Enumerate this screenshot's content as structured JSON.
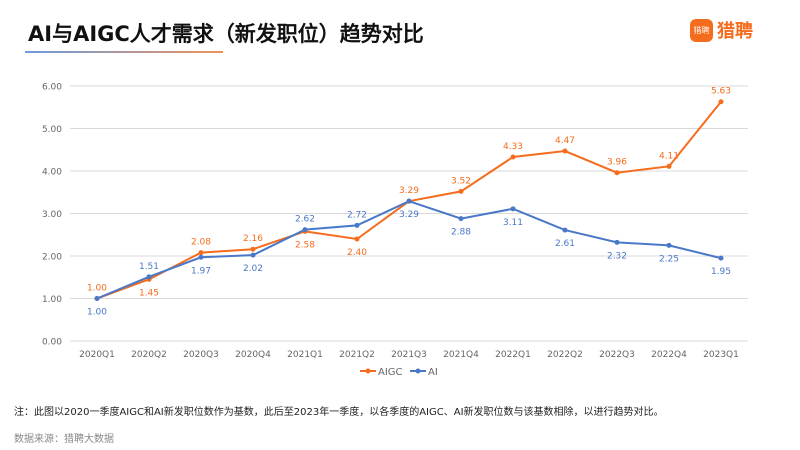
{
  "header": {
    "title": "AI与AIGC人才需求（新发职位）趋势对比",
    "logo_text": "猎聘",
    "logo_icon_text": "猎聘"
  },
  "chart_data": {
    "type": "line",
    "categories": [
      "2020Q1",
      "2020Q2",
      "2020Q3",
      "2020Q4",
      "2021Q1",
      "2021Q2",
      "2021Q3",
      "2021Q4",
      "2022Q1",
      "2022Q2",
      "2022Q3",
      "2022Q4",
      "2023Q1"
    ],
    "series": [
      {
        "name": "AIGC",
        "color": "#f46c1c",
        "values": [
          1.0,
          1.45,
          2.08,
          2.16,
          2.58,
          2.4,
          3.29,
          3.52,
          4.33,
          4.47,
          3.96,
          4.11,
          5.63
        ]
      },
      {
        "name": "AI",
        "color": "#4a78c8",
        "values": [
          1.0,
          1.51,
          1.97,
          2.02,
          2.62,
          2.72,
          3.29,
          2.88,
          3.11,
          2.61,
          2.32,
          2.25,
          1.95
        ]
      }
    ],
    "yticks": [
      "0.00",
      "1.00",
      "2.00",
      "3.00",
      "4.00",
      "5.00",
      "6.00"
    ],
    "ylim": [
      0,
      6
    ],
    "grid": true,
    "legend": "bottom"
  },
  "footer": {
    "note": "注：此图以2020一季度AIGC和AI新发职位数作为基数，此后至2023年一季度，以各季度的AIGC、AI新发职位数与该基数相除，以进行趋势对比。",
    "source": "数据来源：猎聘大数据"
  }
}
